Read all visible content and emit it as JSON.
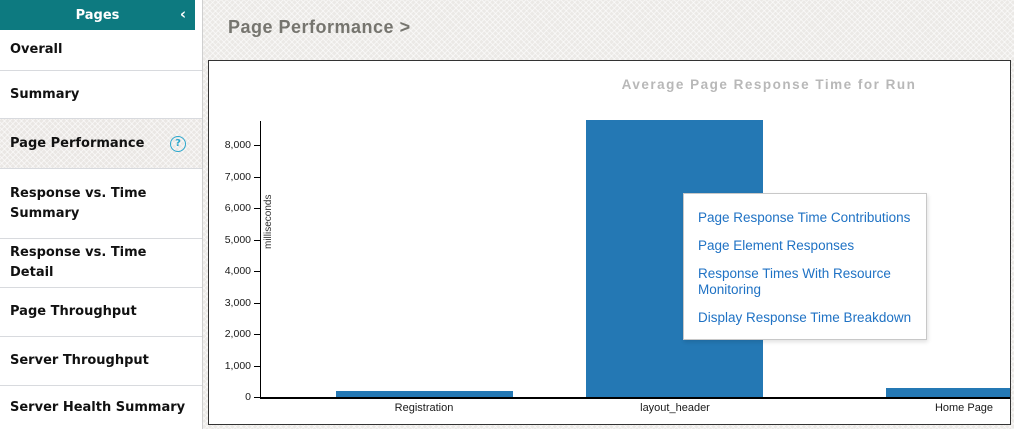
{
  "sidebar": {
    "header": {
      "title": "Pages",
      "collapse_icon": "‹"
    },
    "items": [
      {
        "label": "Overall",
        "selected": false,
        "has_help": false
      },
      {
        "label": "Summary",
        "selected": false,
        "has_help": false
      },
      {
        "label": "Page Performance",
        "selected": true,
        "has_help": true
      },
      {
        "label": "Response vs. Time Summary",
        "selected": false,
        "has_help": false
      },
      {
        "label": "Response vs. Time Detail",
        "selected": false,
        "has_help": false
      },
      {
        "label": "Page Throughput",
        "selected": false,
        "has_help": false
      },
      {
        "label": "Server Throughput",
        "selected": false,
        "has_help": false
      },
      {
        "label": "Server Health Summary",
        "selected": false,
        "has_help": false
      }
    ],
    "help_icon_glyph": "?"
  },
  "main": {
    "breadcrumb": "Page Performance >"
  },
  "context_menu": {
    "items": [
      "Page Response Time Contributions",
      "Page Element Responses",
      "Response Times With Resource Monitoring",
      "Display Response Time Breakdown"
    ]
  },
  "chart_data": {
    "type": "bar",
    "title": "Average Page Response Time for Run",
    "xlabel": "",
    "ylabel": "milliseconds",
    "categories": [
      "Registration",
      "layout_header",
      "Home Page"
    ],
    "values": [
      200,
      8800,
      300
    ],
    "yticks": [
      0,
      1000,
      2000,
      3000,
      4000,
      5000,
      6000,
      7000,
      8000
    ],
    "ylim": [
      0,
      8800
    ],
    "grid": false,
    "legend": false,
    "bar_color": "#2478b4"
  },
  "colors": {
    "teal": "#0d7a80",
    "bar": "#2478b4",
    "link": "#1f72c4",
    "help": "#2ba7cd"
  }
}
